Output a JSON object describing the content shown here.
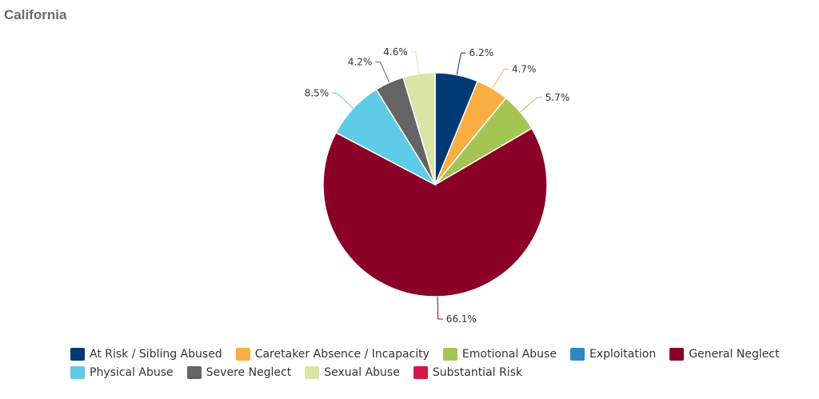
{
  "title": "California",
  "chart_data": {
    "type": "pie",
    "series": [
      {
        "name": "At Risk / Sibling Abused",
        "value": 6.2,
        "label": "6.2%",
        "color": "#003a75"
      },
      {
        "name": "Caretaker Absence / Incapacity",
        "value": 4.7,
        "label": "4.7%",
        "color": "#f9ae42"
      },
      {
        "name": "Emotional Abuse",
        "value": 5.7,
        "label": "5.7%",
        "color": "#a5c553"
      },
      {
        "name": "Exploitation",
        "value": 0,
        "label": "",
        "color": "#2f88c6"
      },
      {
        "name": "General Neglect",
        "value": 66.1,
        "label": "66.1%",
        "color": "#8a0029"
      },
      {
        "name": "Physical Abuse",
        "value": 8.5,
        "label": "8.5%",
        "color": "#5ecbe7"
      },
      {
        "name": "Severe Neglect",
        "value": 4.2,
        "label": "4.2%",
        "color": "#646464"
      },
      {
        "name": "Sexual Abuse",
        "value": 4.6,
        "label": "4.6%",
        "color": "#d9e5a4"
      },
      {
        "name": "Substantial Risk",
        "value": 0,
        "label": "",
        "color": "#d6164b"
      }
    ],
    "legend_position": "bottom"
  }
}
